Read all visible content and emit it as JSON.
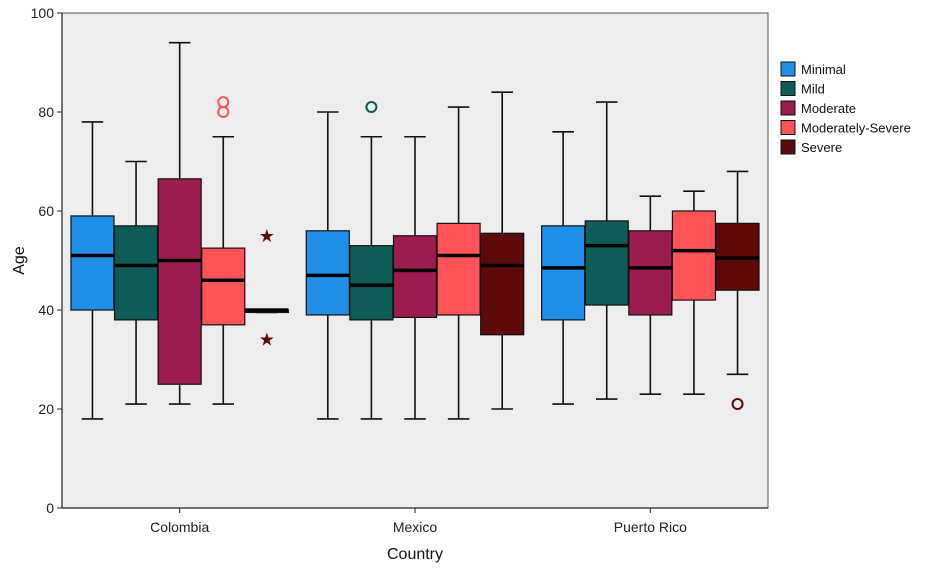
{
  "chart_data": {
    "type": "boxplot",
    "title": "",
    "xlabel": "Country",
    "ylabel": "Age",
    "ylim": [
      0,
      100
    ],
    "yticks": [
      0,
      20,
      40,
      60,
      80,
      100
    ],
    "grid": false,
    "legend_position": "right",
    "categories": [
      "Colombia",
      "Mexico",
      "Puerto Rico"
    ],
    "series": [
      {
        "name": "Minimal",
        "color": "#1f8fe8",
        "boxes": [
          {
            "whisker_low": 18,
            "q1": 40,
            "median": 51,
            "q3": 59,
            "whisker_high": 78,
            "outliers": [],
            "extremes": []
          },
          {
            "whisker_low": 18,
            "q1": 39,
            "median": 47,
            "q3": 56,
            "whisker_high": 80,
            "outliers": [],
            "extremes": []
          },
          {
            "whisker_low": 21,
            "q1": 38,
            "median": 48.5,
            "q3": 57,
            "whisker_high": 76,
            "outliers": [],
            "extremes": []
          }
        ]
      },
      {
        "name": "Mild",
        "color": "#0e5c58",
        "boxes": [
          {
            "whisker_low": 21,
            "q1": 38,
            "median": 49,
            "q3": 57,
            "whisker_high": 70,
            "outliers": [],
            "extremes": []
          },
          {
            "whisker_low": 18,
            "q1": 38,
            "median": 45,
            "q3": 53,
            "whisker_high": 75,
            "outliers": [
              81
            ],
            "extremes": []
          },
          {
            "whisker_low": 22,
            "q1": 41,
            "median": 53,
            "q3": 58,
            "whisker_high": 82,
            "outliers": [],
            "extremes": []
          }
        ]
      },
      {
        "name": "Moderate",
        "color": "#9c1c50",
        "boxes": [
          {
            "whisker_low": 21,
            "q1": 25,
            "median": 50,
            "q3": 66.5,
            "whisker_high": 94,
            "outliers": [],
            "extremes": []
          },
          {
            "whisker_low": 18,
            "q1": 38.5,
            "median": 48,
            "q3": 55,
            "whisker_high": 75,
            "outliers": [],
            "extremes": []
          },
          {
            "whisker_low": 23,
            "q1": 39,
            "median": 48.5,
            "q3": 56,
            "whisker_high": 63,
            "outliers": [],
            "extremes": []
          }
        ]
      },
      {
        "name": "Moderately-Severe",
        "color": "#ff5357",
        "boxes": [
          {
            "whisker_low": 21,
            "q1": 37,
            "median": 46,
            "q3": 52.5,
            "whisker_high": 75,
            "outliers": [
              80,
              82
            ],
            "extremes": []
          },
          {
            "whisker_low": 18,
            "q1": 39,
            "median": 51,
            "q3": 57.5,
            "whisker_high": 81,
            "outliers": [],
            "extremes": []
          },
          {
            "whisker_low": 23,
            "q1": 42,
            "median": 52,
            "q3": 60,
            "whisker_high": 64,
            "outliers": [],
            "extremes": []
          }
        ]
      },
      {
        "name": "Severe",
        "color": "#5e0a0a",
        "boxes": [
          {
            "whisker_low": 39.5,
            "q1": 39.5,
            "median": 40,
            "q3": 40,
            "whisker_high": 40,
            "outliers": [],
            "extremes": [
              55,
              34
            ]
          },
          {
            "whisker_low": 20,
            "q1": 35,
            "median": 49,
            "q3": 55.5,
            "whisker_high": 84,
            "outliers": [],
            "extremes": []
          },
          {
            "whisker_low": 27,
            "q1": 44,
            "median": 50.5,
            "q3": 57.5,
            "whisker_high": 68,
            "outliers": [
              21
            ],
            "extremes": []
          }
        ]
      }
    ]
  }
}
